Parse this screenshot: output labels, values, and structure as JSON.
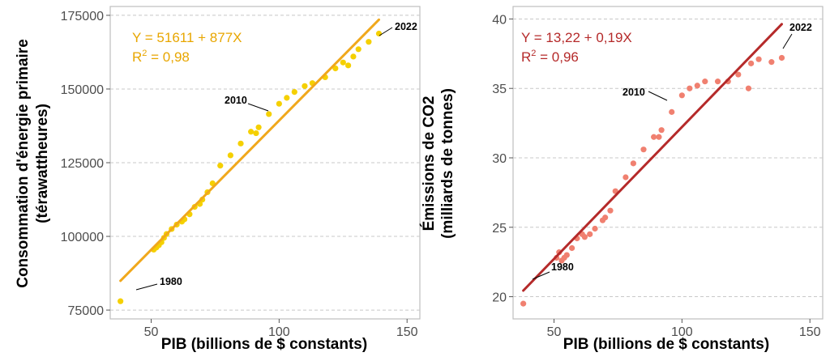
{
  "chart_data": [
    {
      "type": "scatter",
      "xlabel": "PIB (billions de $ constants)",
      "ylabel_lines": [
        "Consommation d'énergie primaire",
        "(térawattheures)"
      ],
      "xlim": [
        34,
        155
      ],
      "ylim": [
        72000,
        178000
      ],
      "xticks": [
        50,
        100,
        150
      ],
      "yticks": [
        75000,
        100000,
        125000,
        150000,
        175000
      ],
      "xtick_labels": [
        "50",
        "100",
        "150"
      ],
      "ytick_labels": [
        "75000",
        "100000",
        "125000",
        "150000",
        "175000"
      ],
      "grid": "horizontal-dashed",
      "colors": {
        "points": "#f5d000",
        "line": "#f0a81c",
        "equation": "#e8a600"
      },
      "equation": "Y = 51611 + 877X",
      "r2_label": "R",
      "r2_sup": "2",
      "r2_value": " = 0,98",
      "regression": {
        "intercept": 51611,
        "slope": 877,
        "x_start": 38,
        "x_end": 139
      },
      "annotations": [
        {
          "label": "1980",
          "x": 38,
          "y": 78000
        },
        {
          "label": "2010",
          "x": 96,
          "y": 141500
        },
        {
          "label": "2022",
          "x": 139,
          "y": 168800
        }
      ],
      "points": [
        [
          38,
          78000
        ],
        [
          51,
          95500
        ],
        [
          52,
          96200
        ],
        [
          53,
          97000
        ],
        [
          54,
          98000
        ],
        [
          55,
          99500
        ],
        [
          56,
          100800
        ],
        [
          58,
          102500
        ],
        [
          60,
          104000
        ],
        [
          62,
          105000
        ],
        [
          63,
          105800
        ],
        [
          65,
          107500
        ],
        [
          67,
          110000
        ],
        [
          69,
          111000
        ],
        [
          70,
          112500
        ],
        [
          72,
          115000
        ],
        [
          74,
          118000
        ],
        [
          77,
          124000
        ],
        [
          81,
          127500
        ],
        [
          85,
          131500
        ],
        [
          89,
          135500
        ],
        [
          91,
          135000
        ],
        [
          92,
          137000
        ],
        [
          96,
          141500
        ],
        [
          100,
          145000
        ],
        [
          103,
          147000
        ],
        [
          106,
          149000
        ],
        [
          110,
          151000
        ],
        [
          113,
          152000
        ],
        [
          118,
          154000
        ],
        [
          122,
          157000
        ],
        [
          125,
          159000
        ],
        [
          127,
          158000
        ],
        [
          129,
          161000
        ],
        [
          131,
          163500
        ],
        [
          135,
          166000
        ],
        [
          139,
          168800
        ]
      ]
    },
    {
      "type": "scatter",
      "xlabel": "PIB (billions de $ constants)",
      "ylabel_lines": [
        "Émissions de CO2",
        "(milliards de tonnes)"
      ],
      "xlim": [
        34,
        155
      ],
      "ylim": [
        18.4,
        40.9
      ],
      "xticks": [
        50,
        100,
        150
      ],
      "yticks": [
        20,
        25,
        30,
        35,
        40
      ],
      "xtick_labels": [
        "50",
        "100",
        "150"
      ],
      "ytick_labels": [
        "20",
        "25",
        "30",
        "35",
        "40"
      ],
      "grid": "horizontal-dashed",
      "colors": {
        "points": "#f08070",
        "line": "#b52a2a",
        "equation": "#b52a2a"
      },
      "equation": "Y = 13,22 + 0,19X",
      "r2_label": "R",
      "r2_sup": "2",
      "r2_value": " = 0,96",
      "regression": {
        "intercept": 13.22,
        "slope": 0.19,
        "x_start": 38,
        "x_end": 139
      },
      "annotations": [
        {
          "label": "1980",
          "x": 38,
          "y": 19.5
        },
        {
          "label": "2010",
          "x": 96,
          "y": 33.3
        },
        {
          "label": "2022",
          "x": 139,
          "y": 37.2
        }
      ],
      "points": [
        [
          38,
          19.5
        ],
        [
          51,
          22.8
        ],
        [
          52,
          23.2
        ],
        [
          53,
          22.6
        ],
        [
          54,
          22.8
        ],
        [
          55,
          23.0
        ],
        [
          57,
          23.5
        ],
        [
          59,
          24.2
        ],
        [
          61,
          24.5
        ],
        [
          62,
          24.3
        ],
        [
          64,
          24.5
        ],
        [
          66,
          24.9
        ],
        [
          69,
          25.5
        ],
        [
          70,
          25.7
        ],
        [
          72,
          26.2
        ],
        [
          74,
          27.6
        ],
        [
          78,
          28.6
        ],
        [
          81,
          29.6
        ],
        [
          85,
          30.6
        ],
        [
          89,
          31.5
        ],
        [
          91,
          31.5
        ],
        [
          92,
          32.0
        ],
        [
          96,
          33.3
        ],
        [
          100,
          34.5
        ],
        [
          103,
          35.0
        ],
        [
          106,
          35.2
        ],
        [
          109,
          35.5
        ],
        [
          114,
          35.5
        ],
        [
          118,
          35.5
        ],
        [
          122,
          36.0
        ],
        [
          126,
          35.0
        ],
        [
          127,
          36.8
        ],
        [
          130,
          37.1
        ],
        [
          135,
          36.9
        ],
        [
          139,
          37.2
        ]
      ]
    }
  ]
}
